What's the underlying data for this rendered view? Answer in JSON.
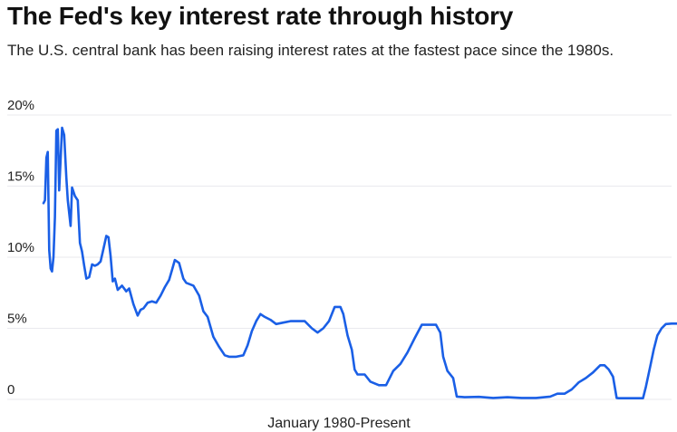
{
  "chart_data": {
    "type": "line",
    "title": "The Fed's key interest rate through history",
    "subtitle": "The U.S. central bank has been raising interest rates at the fastest pace since the 1980s.",
    "xlabel": "January 1980-Present",
    "ylabel": "",
    "yticks": [
      "0",
      "5%",
      "10%",
      "15%",
      "20%"
    ],
    "ytick_values": [
      0,
      5,
      10,
      15,
      20
    ],
    "ylim": [
      0,
      20
    ],
    "xlim": [
      1980.0,
      2024.0
    ],
    "grid": true,
    "line_color": "#1a5fe6",
    "series": [
      {
        "x": [
          1980.0,
          1980.1,
          1980.2,
          1980.3,
          1980.4,
          1980.5,
          1980.6,
          1980.7,
          1980.8,
          1980.9,
          1981.0,
          1981.1,
          1981.3,
          1981.45,
          1981.6,
          1981.7,
          1981.9,
          1982.0,
          1982.2,
          1982.4,
          1982.55,
          1982.7,
          1982.85,
          1983.0,
          1983.2,
          1983.4,
          1983.6,
          1983.8,
          1984.0,
          1984.2,
          1984.4,
          1984.55,
          1984.7,
          1984.85,
          1985.0,
          1985.2,
          1985.5,
          1985.8,
          1986.0,
          1986.3,
          1986.6,
          1986.8,
          1987.0,
          1987.3,
          1987.6,
          1987.9,
          1988.2,
          1988.5,
          1988.8,
          1989.0,
          1989.2,
          1989.5,
          1989.8,
          1990.0,
          1990.5,
          1990.9,
          1991.2,
          1991.5,
          1991.9,
          1992.3,
          1992.7,
          1993.0,
          1993.5,
          1994.0,
          1994.3,
          1994.6,
          1994.9,
          1995.2,
          1995.5,
          1995.9,
          1996.3,
          1996.8,
          1997.3,
          1997.8,
          1998.3,
          1998.8,
          1999.2,
          1999.6,
          2000.0,
          2000.4,
          2000.8,
          2001.0,
          2001.3,
          2001.6,
          2001.8,
          2002.0,
          2002.5,
          2002.9,
          2003.5,
          2004.0,
          2004.5,
          2005.0,
          2005.5,
          2006.0,
          2006.5,
          2007.0,
          2007.5,
          2007.8,
          2008.0,
          2008.3,
          2008.7,
          2008.95,
          2009.5,
          2010.5,
          2011.5,
          2012.5,
          2013.5,
          2014.5,
          2015.5,
          2016.0,
          2016.5,
          2017.0,
          2017.5,
          2018.0,
          2018.5,
          2019.0,
          2019.3,
          2019.6,
          2019.9,
          2020.15,
          2020.3,
          2021.0,
          2022.0,
          2022.2,
          2022.5,
          2022.75,
          2023.0,
          2023.3,
          2023.6,
          2024.0,
          2024.5,
          2024.75
        ],
        "y": [
          13.8,
          14.0,
          17.0,
          17.4,
          10.5,
          9.2,
          9.0,
          10.0,
          12.8,
          18.9,
          19.0,
          14.7,
          19.1,
          18.6,
          15.6,
          14.0,
          12.2,
          14.9,
          14.3,
          14.0,
          11.0,
          10.4,
          9.4,
          8.5,
          8.6,
          9.5,
          9.4,
          9.5,
          9.7,
          10.6,
          11.5,
          11.4,
          10.1,
          8.3,
          8.5,
          7.7,
          8.0,
          7.6,
          7.8,
          6.7,
          5.9,
          6.3,
          6.4,
          6.8,
          6.9,
          6.8,
          7.3,
          7.9,
          8.4,
          9.1,
          9.8,
          9.6,
          8.5,
          8.2,
          8.0,
          7.3,
          6.2,
          5.8,
          4.4,
          3.7,
          3.1,
          3.0,
          3.0,
          3.1,
          3.8,
          4.8,
          5.5,
          6.0,
          5.8,
          5.6,
          5.3,
          5.4,
          5.5,
          5.5,
          5.5,
          5.0,
          4.7,
          5.0,
          5.5,
          6.5,
          6.5,
          6.0,
          4.5,
          3.5,
          2.1,
          1.75,
          1.75,
          1.25,
          1.0,
          1.0,
          2.0,
          2.5,
          3.3,
          4.3,
          5.25,
          5.25,
          5.25,
          4.7,
          3.0,
          2.0,
          1.5,
          0.2,
          0.15,
          0.18,
          0.1,
          0.15,
          0.1,
          0.1,
          0.2,
          0.4,
          0.4,
          0.7,
          1.2,
          1.5,
          1.9,
          2.4,
          2.4,
          2.1,
          1.6,
          0.1,
          0.08,
          0.08,
          0.08,
          0.9,
          2.3,
          3.5,
          4.5,
          5.0,
          5.3,
          5.33,
          5.33,
          4.8
        ]
      }
    ]
  }
}
